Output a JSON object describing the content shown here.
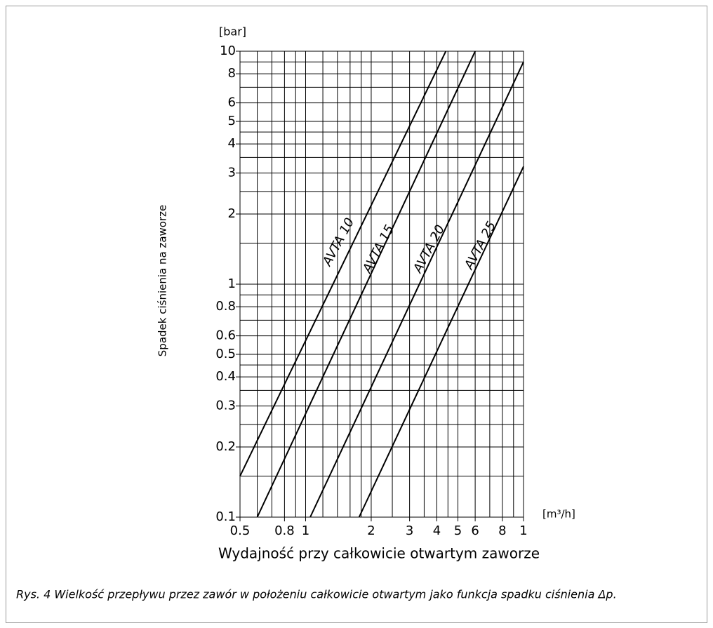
{
  "chart_data": {
    "type": "line",
    "y_unit": "[bar]",
    "x_unit": "[m³/h]",
    "ylabel": "Spadek ciśnienia na zaworze",
    "xlabel": "Wydajność przy całkowicie otwartym zaworze",
    "caption": "Rys. 4  Wielkość przepływu przez zawór w położeniu całkowicie otwartym jako funkcja spadku ciśnienia Δp.",
    "xscale": "log",
    "yscale": "log",
    "grid": true,
    "color": "#000000",
    "xlim": [
      0.5,
      10
    ],
    "ylim": [
      0.1,
      10
    ],
    "xticks": [
      0.5,
      0.8,
      1,
      2,
      3,
      4,
      5,
      6,
      8,
      {
        "value": 10,
        "label": "1"
      }
    ],
    "yticks": [
      0.1,
      0.2,
      0.3,
      0.4,
      0.5,
      0.6,
      0.8,
      1,
      2,
      3,
      4,
      5,
      6,
      8,
      10
    ],
    "x_grid": [
      0.6,
      0.7,
      0.9,
      1.2,
      1.4,
      1.6,
      1.8,
      2.5,
      3.5,
      4.5,
      7,
      9
    ],
    "y_grid": [
      0.15,
      0.25,
      0.35,
      0.45,
      0.7,
      0.9,
      1.5,
      2.5,
      3.5,
      4.5,
      7,
      9
    ],
    "series": [
      {
        "name": "AVTA 10",
        "color": "#000000",
        "x": [
          0.5,
          4.4
        ],
        "values": [
          0.15,
          10
        ]
      },
      {
        "name": "AVTA 15",
        "color": "#000000",
        "x": [
          0.6,
          6.0
        ],
        "values": [
          0.1,
          10
        ]
      },
      {
        "name": "AVTA 20",
        "color": "#000000",
        "x": [
          1.05,
          10
        ],
        "values": [
          0.1,
          9.0
        ]
      },
      {
        "name": "AVTA 25",
        "color": "#000000",
        "x": [
          1.76,
          10
        ],
        "values": [
          0.1,
          3.2
        ]
      }
    ]
  }
}
